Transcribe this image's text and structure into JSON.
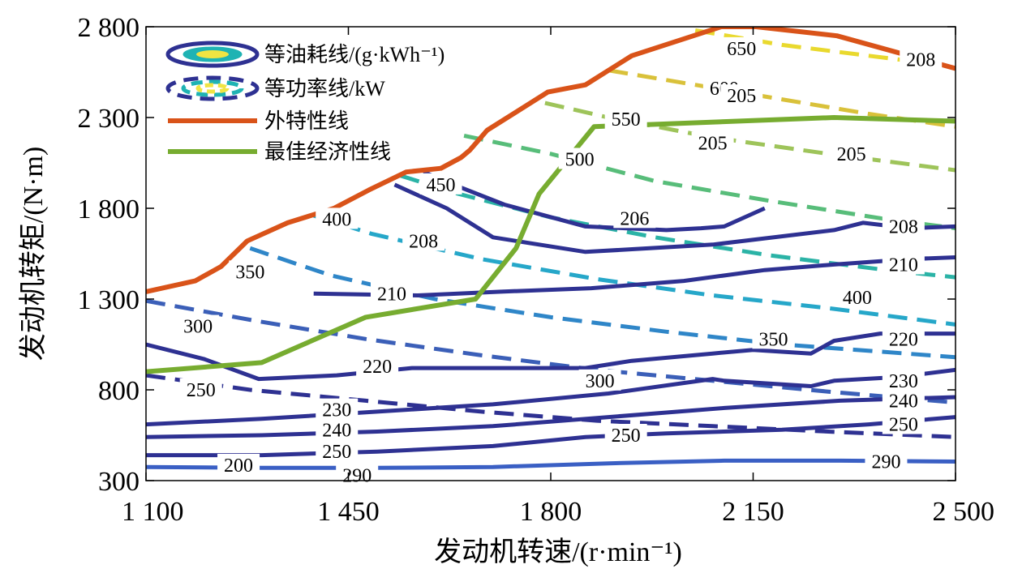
{
  "chart_data": {
    "type": "contour",
    "xlabel": "发动机转速/(r·min⁻¹)",
    "ylabel": "发动机转矩/(N·m)",
    "xlim": [
      1100,
      2500
    ],
    "ylim": [
      300,
      2800
    ],
    "x_ticks": [
      1100,
      1450,
      1800,
      2150,
      2500
    ],
    "x_tick_labels": [
      "1 100",
      "1 450",
      "1 800",
      "2 150",
      "2 500"
    ],
    "y_ticks": [
      300,
      800,
      1300,
      1800,
      2300,
      2800
    ],
    "y_tick_labels": [
      "300",
      "800",
      "1 300",
      "1 800",
      "2 300",
      "2 800"
    ],
    "legend": {
      "position": "top-left",
      "entries": [
        {
          "label": "等油耗线/(g·kWh⁻¹)",
          "style": "solid-contour"
        },
        {
          "label": "等功率线/kW",
          "style": "dashed-contour"
        },
        {
          "label": "外特性线",
          "color": "#d95319"
        },
        {
          "label": "最佳经济性线",
          "color": "#77ac30"
        }
      ]
    },
    "colors": {
      "external": "#d95319",
      "economic": "#77ac30"
    },
    "series": [
      {
        "name": "外特性线",
        "kind": "line",
        "color": "#d95319",
        "x": [
          1100,
          1185,
          1230,
          1275,
          1345,
          1425,
          1485,
          1550,
          1610,
          1645,
          1660,
          1690,
          1795,
          1860,
          1940,
          2095,
          2155,
          2295,
          2500
        ],
        "y": [
          1340,
          1400,
          1480,
          1620,
          1720,
          1800,
          1900,
          2000,
          2020,
          2080,
          2120,
          2230,
          2440,
          2480,
          2640,
          2800,
          2800,
          2750,
          2570
        ]
      },
      {
        "name": "最佳经济性线",
        "kind": "line",
        "color": "#77ac30",
        "x": [
          1100,
          1300,
          1480,
          1670,
          1740,
          1780,
          1875,
          2290,
          2500
        ],
        "y": [
          900,
          950,
          1200,
          1300,
          1580,
          1880,
          2250,
          2300,
          2280
        ]
      }
    ],
    "fuel_contours": [
      {
        "label": "220",
        "color": "#2e3192",
        "x": [
          1100,
          1200,
          1295,
          1430,
          1560,
          1720,
          1860,
          1940,
          2080,
          2150,
          2250,
          2290,
          2370,
          2500
        ],
        "y": [
          1050,
          970,
          860,
          880,
          920,
          920,
          920,
          960,
          1000,
          1020,
          1000,
          1070,
          1110,
          1110
        ]
      },
      {
        "label": "230",
        "color": "#2e3192",
        "x": [
          1100,
          1300,
          1500,
          1700,
          1900,
          2080,
          2100,
          2150,
          2250,
          2290,
          2400,
          2500
        ],
        "y": [
          610,
          640,
          680,
          720,
          780,
          860,
          850,
          840,
          820,
          850,
          870,
          910
        ]
      },
      {
        "label": "240",
        "color": "#2e3192",
        "x": [
          1100,
          1300,
          1500,
          1700,
          1900,
          2100,
          2300,
          2500
        ],
        "y": [
          540,
          550,
          570,
          600,
          650,
          700,
          740,
          760
        ]
      },
      {
        "label": "250",
        "color": "#2e3192",
        "x": [
          1100,
          1300,
          1500,
          1700,
          1860,
          2000,
          2200,
          2350,
          2500
        ],
        "y": [
          440,
          440,
          460,
          490,
          540,
          560,
          580,
          610,
          650
        ]
      },
      {
        "label": "290",
        "color": "#3a5fc4",
        "x": [
          1100,
          1300,
          1500,
          1700,
          1900,
          2100,
          2300,
          2500
        ],
        "y": [
          375,
          370,
          370,
          375,
          395,
          410,
          410,
          405
        ]
      },
      {
        "label": "210",
        "color": "#2e3192",
        "x": [
          1390,
          1570,
          1710,
          1870,
          2030,
          2170,
          2290,
          2420,
          2500
        ],
        "y": [
          1330,
          1320,
          1340,
          1360,
          1400,
          1460,
          1490,
          1520,
          1530
        ]
      },
      {
        "label": "208",
        "color": "#2e3192",
        "x": [
          1530,
          1620,
          1700,
          1860,
          2080,
          2290,
          2340,
          2420,
          2500
        ],
        "y": [
          1930,
          1800,
          1640,
          1560,
          1600,
          1680,
          1720,
          1690,
          1700
        ]
      },
      {
        "label": "206",
        "color": "#2e3192",
        "x": [
          1580,
          1640,
          1720,
          1860,
          2000,
          2060,
          2100,
          2170
        ],
        "y": [
          2000,
          1920,
          1820,
          1700,
          1680,
          1690,
          1700,
          1800
        ]
      }
    ],
    "fuel_contour_labels": [
      "200",
      "205",
      "206",
      "208",
      "210",
      "220",
      "230",
      "240",
      "250",
      "290"
    ],
    "power_contours": [
      {
        "label": "250",
        "x": [
          1100,
          1280,
          1480,
          1680,
          1880,
          2080,
          2280,
          2500
        ],
        "y": [
          880,
          800,
          740,
          680,
          630,
          600,
          570,
          540
        ]
      },
      {
        "label": "300",
        "x": [
          1100,
          1290,
          1480,
          1680,
          1880,
          2080,
          2280,
          2500
        ],
        "y": [
          1290,
          1180,
          1080,
          990,
          910,
          850,
          790,
          730
        ]
      },
      {
        "label": "350",
        "x": [
          1280,
          1420,
          1600,
          1800,
          2000,
          2200,
          2500
        ],
        "y": [
          1580,
          1430,
          1300,
          1200,
          1120,
          1050,
          980
        ]
      },
      {
        "label": "400",
        "x": [
          1390,
          1490,
          1680,
          1880,
          2080,
          2280,
          2500
        ],
        "y": [
          1760,
          1660,
          1520,
          1410,
          1320,
          1250,
          1160
        ]
      },
      {
        "label": "450",
        "x": [
          1540,
          1640,
          1800,
          1980,
          2180,
          2380,
          2500
        ],
        "y": [
          1980,
          1880,
          1750,
          1640,
          1540,
          1460,
          1420
        ]
      },
      {
        "label": "500",
        "x": [
          1650,
          1800,
          1980,
          2180,
          2380,
          2500
        ],
        "y": [
          2200,
          2100,
          1950,
          1840,
          1740,
          1690
        ]
      },
      {
        "label": "550",
        "x": [
          1790,
          1900,
          2080,
          2280,
          2500
        ],
        "y": [
          2380,
          2300,
          2190,
          2100,
          2010
        ]
      },
      {
        "label": "600",
        "x": [
          1900,
          2050,
          2200,
          2350,
          2500
        ],
        "y": [
          2560,
          2480,
          2400,
          2320,
          2250
        ]
      },
      {
        "label": "650",
        "x": [
          2050,
          2200,
          2350,
          2500
        ],
        "y": [
          2780,
          2700,
          2640,
          2580
        ]
      }
    ],
    "power_contour_labels": [
      "250",
      "300",
      "350",
      "400",
      "450",
      "500",
      "550",
      "600",
      "650"
    ]
  }
}
